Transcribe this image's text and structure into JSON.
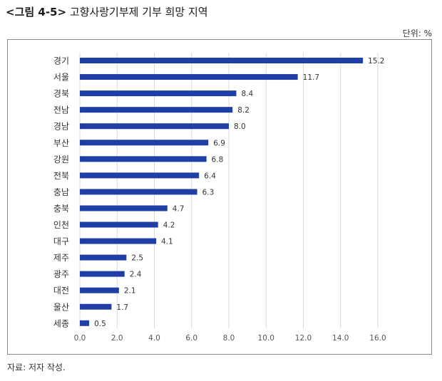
{
  "figure": {
    "number": "<그림 4-5>",
    "title": "고향사랑기부제 기부 희망 지역",
    "unit_label": "단위: %",
    "source": "자료: 저자 작성."
  },
  "chart_data": {
    "type": "bar",
    "orientation": "horizontal",
    "categories": [
      "경기",
      "서울",
      "경북",
      "전남",
      "경남",
      "부산",
      "강원",
      "전북",
      "충남",
      "충북",
      "인천",
      "대구",
      "제주",
      "광주",
      "대전",
      "울산",
      "세종"
    ],
    "values": [
      15.2,
      11.7,
      8.4,
      8.2,
      8.0,
      6.9,
      6.8,
      6.4,
      6.3,
      4.7,
      4.2,
      4.1,
      2.5,
      2.4,
      2.1,
      1.7,
      0.5
    ],
    "value_labels": [
      "15.2",
      "11.7",
      "8.4",
      "8.2",
      "8.0",
      "6.9",
      "6.8",
      "6.4",
      "6.3",
      "4.7",
      "4.2",
      "4.1",
      "2.5",
      "2.4",
      "2.1",
      "1.7",
      "0.5"
    ],
    "xlim": [
      0,
      16
    ],
    "xticks": [
      "0.0",
      "2.0",
      "4.0",
      "6.0",
      "8.0",
      "10.0",
      "12.0",
      "14.0",
      "16.0"
    ],
    "grid": true,
    "bar_color": "#1f3fa6",
    "grid_color": "#d9d9d9",
    "title": "",
    "xlabel": "",
    "ylabel": ""
  }
}
